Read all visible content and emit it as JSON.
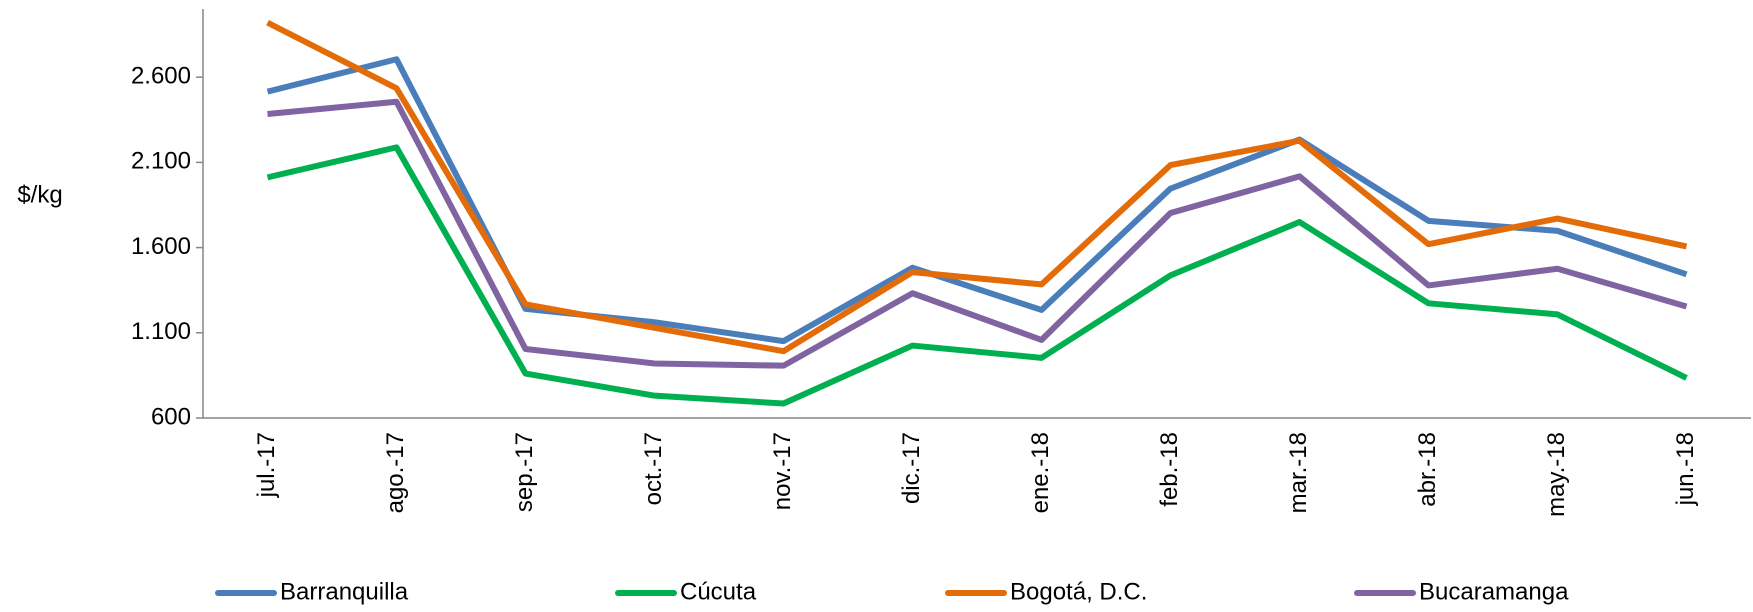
{
  "chart_data": {
    "type": "line",
    "y_label": "$/kg",
    "categories": [
      "jul.-17",
      "ago.-17",
      "sep.-17",
      "oct.-17",
      "nov.-17",
      "dic.-17",
      "ene.-18",
      "feb.-18",
      "mar.-18",
      "abr.-18",
      "may.-18",
      "jun.-18"
    ],
    "series": [
      {
        "name": "Barranquilla",
        "color": "#4a7ebb",
        "values": [
          2515,
          2705,
          1240,
          1162,
          1051,
          1482,
          1234,
          1946,
          2234,
          1757,
          1698,
          1443
        ]
      },
      {
        "name": "Cúcuta",
        "color": "#00b050",
        "values": [
          2012,
          2188,
          861,
          731,
          685,
          1025,
          953,
          1437,
          1750,
          1273,
          1208,
          835
        ]
      },
      {
        "name": "Bogotá, D.C.",
        "color": "#e36c09",
        "values": [
          2920,
          2535,
          1267,
          1129,
          992,
          1456,
          1384,
          2084,
          2227,
          1620,
          1770,
          1607
        ]
      },
      {
        "name": "Bucaramanga",
        "color": "#8064a2",
        "values": [
          2384,
          2456,
          1005,
          920,
          907,
          1332,
          1058,
          1803,
          2018,
          1378,
          1476,
          1254
        ]
      }
    ],
    "ylim": [
      600,
      3000
    ],
    "yticks": [
      600,
      {
        "value": 1100,
        "label": "1.100"
      },
      {
        "value": 1600,
        "label": "1.600"
      },
      {
        "value": 2100,
        "label": "2.100"
      },
      {
        "value": 2600,
        "label": "2.600"
      }
    ],
    "legend": "bottom"
  }
}
